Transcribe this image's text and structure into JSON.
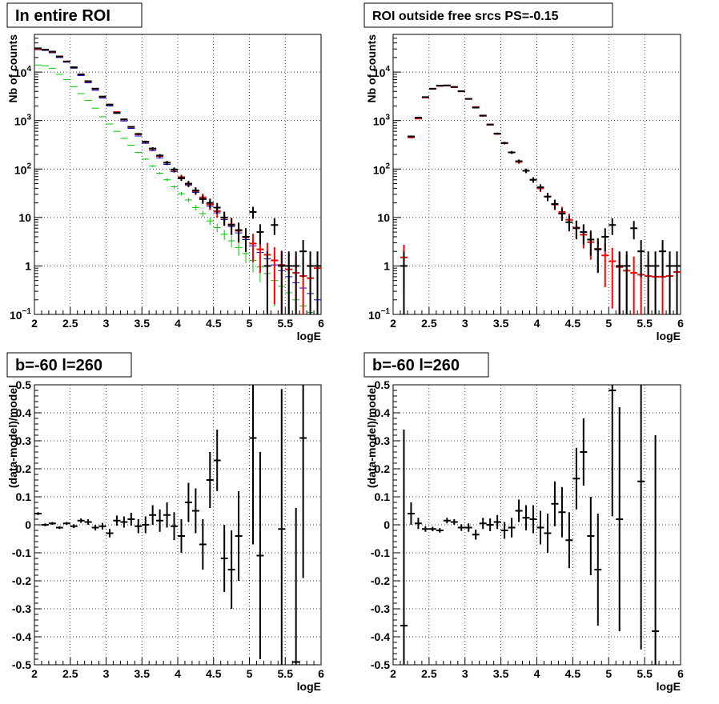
{
  "chart_data": [
    {
      "type": "scatter",
      "title": "In entire ROI",
      "xlabel": "logE",
      "ylabel": "Nb of counts",
      "xlim": [
        2,
        6
      ],
      "ylim": [
        0.1,
        60000
      ],
      "yscale": "log",
      "grid": true,
      "x_ticks": [
        "2",
        "2.5",
        "3",
        "3.5",
        "4",
        "4.5",
        "5",
        "5.5",
        "6"
      ],
      "y_ticks": [
        {
          "v": 0.1,
          "base": "10",
          "exp": "−1"
        },
        {
          "v": 1,
          "label": "1"
        },
        {
          "v": 10,
          "label": "10"
        },
        {
          "v": 100,
          "base": "10",
          "exp": "2"
        },
        {
          "v": 1000,
          "base": "10",
          "exp": "3"
        },
        {
          "v": 10000,
          "base": "10",
          "exp": "4"
        }
      ],
      "series": [
        {
          "color": "#00cc00",
          "x": [
            2.05,
            2.15,
            2.25,
            2.35,
            2.45,
            2.55,
            2.65,
            2.75,
            2.85,
            2.95,
            3.05,
            3.15,
            3.25,
            3.35,
            3.45,
            3.55,
            3.65,
            3.75,
            3.85,
            3.95,
            4.05,
            4.15,
            4.25,
            4.35,
            4.45,
            4.55,
            4.65,
            4.75,
            4.85,
            4.95,
            5.05,
            5.15,
            5.25,
            5.35,
            5.45,
            5.55,
            5.65,
            5.75,
            5.85,
            5.95
          ],
          "y": [
            14000,
            13500,
            12000,
            9000,
            7000,
            5000,
            3600,
            2600,
            1800,
            1200,
            850,
            600,
            430,
            310,
            220,
            160,
            115,
            82,
            60,
            43,
            31,
            23,
            16,
            12,
            8.5,
            6.2,
            4.5,
            3.3,
            2.4,
            1.8,
            1.3,
            0.95,
            0.7,
            0.5,
            0.38,
            0.28,
            0.2,
            0.15,
            0.11,
            0.08
          ]
        },
        {
          "color": "#0000cc",
          "x": [
            2.05,
            2.15,
            2.25,
            2.35,
            2.45,
            2.55,
            2.65,
            2.75,
            2.85,
            2.95,
            3.05,
            3.15,
            3.25,
            3.35,
            3.45,
            3.55,
            3.65,
            3.75,
            3.85,
            3.95,
            4.05,
            4.15,
            4.25,
            4.35,
            4.45,
            4.55,
            4.65,
            4.75,
            4.85,
            4.95,
            5.05,
            5.15,
            5.25,
            5.35,
            5.45,
            5.55,
            5.65,
            5.75,
            5.85,
            5.95
          ],
          "y": [
            29000,
            28000,
            25000,
            20000,
            16000,
            12000,
            8500,
            6000,
            4200,
            2900,
            2000,
            1400,
            980,
            690,
            480,
            340,
            240,
            170,
            125,
            88,
            63,
            46,
            33,
            24,
            17,
            12.5,
            9,
            6.5,
            4.8,
            3.5,
            2.6,
            1.9,
            1.4,
            1.05,
            0.8,
            0.6,
            0.45,
            0.35,
            0.27,
            0.2
          ]
        },
        {
          "color": "#ff0000",
          "x": [
            2.05,
            2.15,
            2.25,
            2.35,
            2.45,
            2.55,
            2.65,
            2.75,
            2.85,
            2.95,
            3.05,
            3.15,
            3.25,
            3.35,
            3.45,
            3.55,
            3.65,
            3.75,
            3.85,
            3.95,
            4.05,
            4.15,
            4.25,
            4.35,
            4.45,
            4.55,
            4.65,
            4.75,
            4.85,
            4.95,
            5.05,
            5.15,
            5.25,
            5.35,
            5.45,
            5.55,
            5.65,
            5.75,
            5.85,
            5.95
          ],
          "y": [
            30000,
            29000,
            26000,
            21000,
            16500,
            12500,
            9000,
            6400,
            4500,
            3100,
            2150,
            1500,
            1050,
            740,
            520,
            365,
            260,
            185,
            135,
            95,
            68,
            49,
            35,
            26,
            18.5,
            13.5,
            9.8,
            7.2,
            5.3,
            3.9,
            2.9,
            2.2,
            1.7,
            1.3,
            1.05,
            0.85,
            0.72,
            0.62,
            0.56,
            0.9
          ],
          "err": true
        },
        {
          "color": "#000000",
          "x": [
            2.05,
            2.15,
            2.25,
            2.35,
            2.45,
            2.55,
            2.65,
            2.75,
            2.85,
            2.95,
            3.05,
            3.15,
            3.25,
            3.35,
            3.45,
            3.55,
            3.65,
            3.75,
            3.85,
            3.95,
            4.05,
            4.15,
            4.25,
            4.35,
            4.45,
            4.55,
            4.65,
            4.75,
            4.85,
            4.95,
            5.05,
            5.15,
            5.25,
            5.35,
            5.45,
            5.55,
            5.65,
            5.75,
            5.85,
            5.95
          ],
          "y": [
            31000,
            29000,
            26500,
            21000,
            16600,
            12600,
            9000,
            6500,
            4560,
            3130,
            2130,
            1450,
            1060,
            740,
            530,
            365,
            265,
            190,
            135,
            98,
            65,
            50,
            36,
            24,
            20,
            16,
            10,
            7,
            5.5,
            4,
            13,
            5,
            1,
            7,
            1,
            1,
            1,
            2,
            1,
            1
          ],
          "err": true
        }
      ]
    },
    {
      "type": "scatter",
      "title": "ROI outside free srcs PS=-0.15",
      "xlabel": "logE",
      "ylabel": "Nb of counts",
      "xlim": [
        2,
        6
      ],
      "ylim": [
        0.1,
        60000
      ],
      "yscale": "log",
      "grid": true,
      "x_ticks": [
        "2",
        "2.5",
        "3",
        "3.5",
        "4",
        "4.5",
        "5",
        "5.5",
        "6"
      ],
      "y_ticks": [
        {
          "v": 0.1,
          "base": "10",
          "exp": "−1"
        },
        {
          "v": 1,
          "label": "1"
        },
        {
          "v": 10,
          "label": "10"
        },
        {
          "v": 100,
          "base": "10",
          "exp": "2"
        },
        {
          "v": 1000,
          "base": "10",
          "exp": "3"
        },
        {
          "v": 10000,
          "base": "10",
          "exp": "4"
        }
      ],
      "series": [
        {
          "color": "#ff0000",
          "x": [
            2.15,
            2.25,
            2.35,
            2.45,
            2.55,
            2.65,
            2.75,
            2.85,
            2.95,
            3.05,
            3.15,
            3.25,
            3.35,
            3.45,
            3.55,
            3.65,
            3.75,
            3.85,
            3.95,
            4.05,
            4.15,
            4.25,
            4.35,
            4.45,
            4.55,
            4.65,
            4.75,
            4.85,
            4.95,
            5.05,
            5.15,
            5.25,
            5.35,
            5.45,
            5.55,
            5.65,
            5.75,
            5.85,
            5.95
          ],
          "y": [
            1.5,
            450,
            1100,
            3000,
            4500,
            5200,
            5300,
            4900,
            4000,
            2800,
            1900,
            1250,
            820,
            530,
            340,
            220,
            140,
            92,
            60,
            40,
            27,
            18.5,
            13,
            9,
            6.2,
            4.4,
            3.1,
            2.25,
            1.65,
            1.25,
            0.95,
            0.8,
            0.72,
            0.66,
            0.62,
            0.6,
            0.6,
            0.62,
            0.75
          ],
          "err": true
        },
        {
          "color": "#000000",
          "x": [
            2.15,
            2.25,
            2.35,
            2.45,
            2.55,
            2.65,
            2.75,
            2.85,
            2.95,
            3.05,
            3.15,
            3.25,
            3.35,
            3.45,
            3.55,
            3.65,
            3.75,
            3.85,
            3.95,
            4.05,
            4.15,
            4.25,
            4.35,
            4.45,
            4.55,
            4.65,
            4.75,
            4.85,
            4.95,
            5.05,
            5.15,
            5.25,
            5.35,
            5.45,
            5.55,
            5.65,
            5.75,
            5.85,
            5.95
          ],
          "y": [
            1,
            470,
            1150,
            3050,
            4550,
            5250,
            5300,
            4950,
            4050,
            2800,
            1850,
            1270,
            830,
            540,
            345,
            220,
            145,
            92,
            60,
            42,
            27,
            19,
            12,
            8,
            6,
            5,
            3.5,
            2.2,
            4,
            7,
            1,
            1,
            6,
            2,
            1,
            1,
            2,
            1,
            1
          ],
          "err": true
        }
      ]
    },
    {
      "type": "scatter",
      "title": "b=-60 l=260",
      "xlabel": "logE",
      "ylabel": "(data-model)/model",
      "xlim": [
        2,
        6
      ],
      "ylim": [
        -0.5,
        0.5
      ],
      "grid": true,
      "x_ticks": [
        "2",
        "2.5",
        "3",
        "3.5",
        "4",
        "4.5",
        "5",
        "5.5",
        "6"
      ],
      "y_ticks": [
        "-0.5",
        "-0.4",
        "-0.3",
        "-0.2",
        "-0.1",
        "0",
        "0.1",
        "0.2",
        "0.3",
        "0.4",
        "0.5"
      ],
      "series": [
        {
          "color": "#000000",
          "x": [
            2.05,
            2.15,
            2.25,
            2.35,
            2.45,
            2.55,
            2.65,
            2.75,
            2.85,
            2.95,
            3.05,
            3.15,
            3.25,
            3.35,
            3.45,
            3.55,
            3.65,
            3.75,
            3.85,
            3.95,
            4.05,
            4.15,
            4.25,
            4.35,
            4.45,
            4.55,
            4.65,
            4.75,
            4.85,
            5.05,
            5.15,
            5.45,
            5.65,
            5.75
          ],
          "y": [
            0.04,
            0,
            0.005,
            -0.01,
            0.005,
            -0.005,
            0.015,
            0.01,
            -0.01,
            -0.005,
            -0.03,
            0.015,
            0.01,
            0.02,
            -0.005,
            0,
            0.035,
            0.015,
            0.035,
            -0.005,
            -0.04,
            0.08,
            0.05,
            -0.07,
            0.16,
            0.23,
            -0.12,
            -0.16,
            -0.04,
            0.31,
            -0.11,
            -0.015,
            -0.49,
            0.31
          ],
          "err": [
            0.005,
            0.005,
            0.005,
            0.005,
            0.005,
            0.007,
            0.008,
            0.01,
            0.01,
            0.012,
            0.015,
            0.018,
            0.02,
            0.023,
            0.025,
            0.03,
            0.035,
            0.04,
            0.045,
            0.05,
            0.06,
            0.07,
            0.08,
            0.09,
            0.1,
            0.11,
            0.12,
            0.14,
            0.16,
            0.38,
            0.37,
            0.5,
            0.55,
            0.5
          ]
        }
      ]
    },
    {
      "type": "scatter",
      "title": "b=-60 l=260",
      "xlabel": "logE",
      "ylabel": "(data-model)/model",
      "xlim": [
        2,
        6
      ],
      "ylim": [
        -0.5,
        0.5
      ],
      "grid": true,
      "x_ticks": [
        "2",
        "2.5",
        "3",
        "3.5",
        "4",
        "4.5",
        "5",
        "5.5",
        "6"
      ],
      "y_ticks": [
        "-0.5",
        "-0.4",
        "-0.3",
        "-0.2",
        "-0.1",
        "0",
        "0.1",
        "0.2",
        "0.3",
        "0.4",
        "0.5"
      ],
      "series": [
        {
          "color": "#000000",
          "x": [
            2.15,
            2.25,
            2.35,
            2.45,
            2.55,
            2.65,
            2.75,
            2.85,
            2.95,
            3.05,
            3.15,
            3.25,
            3.35,
            3.45,
            3.55,
            3.65,
            3.75,
            3.85,
            3.95,
            4.05,
            4.15,
            4.25,
            4.35,
            4.45,
            4.55,
            4.65,
            4.75,
            4.85,
            5.05,
            5.15,
            5.45,
            5.65
          ],
          "y": [
            -0.36,
            0.04,
            0.005,
            -0.015,
            -0.015,
            -0.02,
            0.015,
            0.01,
            -0.01,
            -0.01,
            -0.035,
            0.005,
            0,
            0.01,
            -0.02,
            -0.01,
            0.05,
            0.025,
            0.02,
            -0.01,
            -0.03,
            0.075,
            0.045,
            -0.055,
            0.165,
            0.26,
            -0.04,
            -0.16,
            0.48,
            0.02,
            0.155,
            -0.38
          ],
          "err": [
            0.7,
            0.04,
            0.02,
            0.01,
            0.008,
            0.008,
            0.01,
            0.01,
            0.012,
            0.015,
            0.018,
            0.02,
            0.023,
            0.025,
            0.03,
            0.035,
            0.04,
            0.045,
            0.05,
            0.06,
            0.07,
            0.08,
            0.09,
            0.1,
            0.11,
            0.12,
            0.14,
            0.2,
            0.45,
            0.4,
            0.6,
            0.7
          ]
        }
      ]
    }
  ]
}
